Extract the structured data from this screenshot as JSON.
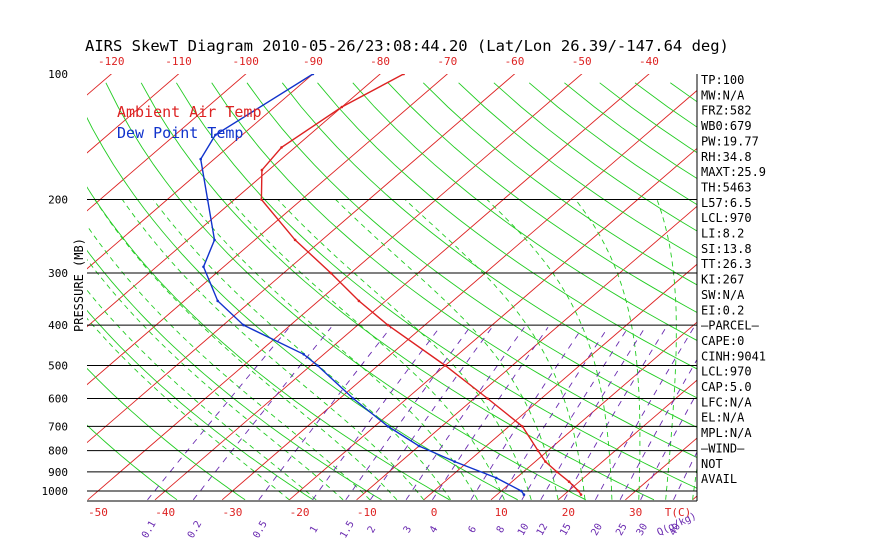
{
  "chart_data": {
    "type": "line",
    "subtype": "skew-t log-p thermodynamic diagram",
    "title": "AIRS SkewT Diagram 2010-05-26/23:08:44.20 (Lat/Lon 26.39/-147.64 deg)",
    "ylabel": "PRESSURE (MB)",
    "y_scale": "log",
    "y_direction": "pressure decreasing upward",
    "ylim": [
      1050,
      100
    ],
    "pressure_levels": [
      100,
      200,
      300,
      400,
      500,
      600,
      700,
      800,
      900,
      1000
    ],
    "pressure_tick_labels": [
      "100",
      "200",
      "300",
      "400",
      "500",
      "600",
      "700",
      "800",
      "900",
      "1000"
    ],
    "top_temperature_ticks": [
      -120,
      -110,
      -100,
      -90,
      -80,
      -70,
      -60,
      -50,
      -40
    ],
    "top_temperature_labels": [
      "-120",
      "-110",
      "-100",
      "-90",
      "-80",
      "-70",
      "-60",
      "-50",
      "-40"
    ],
    "bottom_temperature_ticks": [
      -50,
      -40,
      -30,
      -20,
      -10,
      0,
      10,
      20,
      30
    ],
    "bottom_temperature_labels": [
      "-50",
      "-40",
      "-30",
      "-20",
      "-10",
      "0",
      "10",
      "20",
      "30"
    ],
    "bottom_axis_unit": "T(C)",
    "mixing_ratio_values": [
      0.1,
      0.2,
      0.5,
      1,
      1.5,
      2,
      3,
      4,
      6,
      8,
      10,
      12,
      15,
      20,
      25,
      30,
      40
    ],
    "mixing_ratio_labels": [
      "0.1",
      "0.2",
      "0.5",
      "1",
      "1.5",
      "2",
      "3",
      "4",
      "6",
      "8",
      "10",
      "12",
      "15",
      "20",
      "25",
      "30",
      "40"
    ],
    "mixing_ratio_unit": "Q(g/kg)",
    "legend_position": "top-left",
    "grid": true,
    "grid_lines": [
      "isobars (black)",
      "isotherms (red)",
      "dry adiabats (green)",
      "moist adiabats (green dashed)",
      "mixing ratio lines (purple dashed)"
    ],
    "series": [
      {
        "name": "Ambient Air Temp",
        "color": "#dd2222",
        "points": [
          {
            "p": 100,
            "t": -76.5
          },
          {
            "p": 120,
            "t": -80
          },
          {
            "p": 150,
            "t": -82
          },
          {
            "p": 170,
            "t": -81
          },
          {
            "p": 200,
            "t": -76
          },
          {
            "p": 250,
            "t": -64
          },
          {
            "p": 300,
            "t": -53
          },
          {
            "p": 350,
            "t": -44
          },
          {
            "p": 400,
            "t": -35.5
          },
          {
            "p": 500,
            "t": -20
          },
          {
            "p": 600,
            "t": -8
          },
          {
            "p": 700,
            "t": 2
          },
          {
            "p": 800,
            "t": 8.5
          },
          {
            "p": 850,
            "t": 11.5
          },
          {
            "p": 900,
            "t": 15
          },
          {
            "p": 950,
            "t": 18.5
          },
          {
            "p": 1000,
            "t": 21.5
          },
          {
            "p": 1020,
            "t": 22.5
          }
        ]
      },
      {
        "name": "Dew Point Temp",
        "color": "#1133cc",
        "points": [
          {
            "p": 100,
            "t": -90
          },
          {
            "p": 140,
            "t": -94
          },
          {
            "p": 160,
            "t": -92
          },
          {
            "p": 200,
            "t": -84
          },
          {
            "p": 250,
            "t": -76
          },
          {
            "p": 290,
            "t": -73
          },
          {
            "p": 350,
            "t": -65
          },
          {
            "p": 400,
            "t": -57
          },
          {
            "p": 470,
            "t": -43
          },
          {
            "p": 500,
            "t": -39
          },
          {
            "p": 600,
            "t": -28
          },
          {
            "p": 700,
            "t": -18
          },
          {
            "p": 780,
            "t": -10
          },
          {
            "p": 850,
            "t": -2
          },
          {
            "p": 930,
            "t": 7
          },
          {
            "p": 1000,
            "t": 13
          },
          {
            "p": 1020,
            "t": 14
          }
        ]
      }
    ],
    "indices": [
      "TP:100",
      "MW:N/A",
      "FRZ:582",
      "WB0:679",
      "PW:19.77",
      "RH:34.8",
      "MAXT:25.9",
      "TH:5463",
      "L57:6.5",
      "LCL:970",
      "LI:8.2",
      "SI:13.8",
      "TT:26.3",
      "KI:267",
      "SW:N/A",
      "EI:0.2",
      "—PARCEL—",
      "CAPE:0",
      "CINH:9041",
      "LCL:970",
      "CAP:5.0",
      "LFC:N/A",
      "EL:N/A",
      "MPL:N/A",
      "—WIND—",
      "NOT",
      "AVAIL"
    ],
    "colors": {
      "isobar": "#000000",
      "isotherm": "#dd2222",
      "dry_adiabat": "#22cc22",
      "moist_adiabat": "#22cc22",
      "mixing_ratio": "#6a2ab0",
      "label_text": "#000000",
      "temperature_axis": "#dd2222",
      "mixing_ratio_text": "#6a2ab0"
    }
  }
}
